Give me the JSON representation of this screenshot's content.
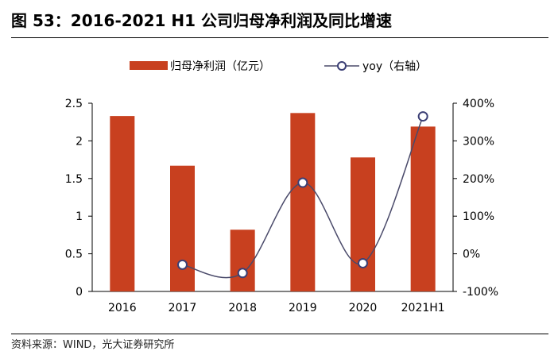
{
  "header": {
    "title": "图 53：2016-2021 H1 公司归母净利润及同比增速"
  },
  "footer": {
    "source": "资料来源：WIND，光大证券研究所"
  },
  "colors": {
    "bar": "#c8401f",
    "line": "#4a4a6a",
    "marker_stroke": "#3b3f75",
    "axis": "#000000"
  },
  "chart_data": {
    "type": "bar",
    "categories": [
      "2016",
      "2017",
      "2018",
      "2019",
      "2020",
      "2021H1"
    ],
    "series": [
      {
        "name": "归母净利润（亿元）",
        "type": "bar",
        "axis": "left",
        "values": [
          2.33,
          1.67,
          0.82,
          2.37,
          1.78,
          2.19
        ]
      },
      {
        "name": "yoy（右轴）",
        "type": "line",
        "axis": "right",
        "values": [
          null,
          -29,
          -51,
          189,
          -25,
          365
        ]
      }
    ],
    "ylim_left": [
      0,
      2.5
    ],
    "yticks_left": [
      "0",
      "0.5",
      "1",
      "1.5",
      "2",
      "2.5"
    ],
    "ylim_right": [
      -100,
      400
    ],
    "yticks_right": [
      "-100%",
      "0%",
      "100%",
      "200%",
      "300%",
      "400%"
    ],
    "legend_position": "top"
  }
}
